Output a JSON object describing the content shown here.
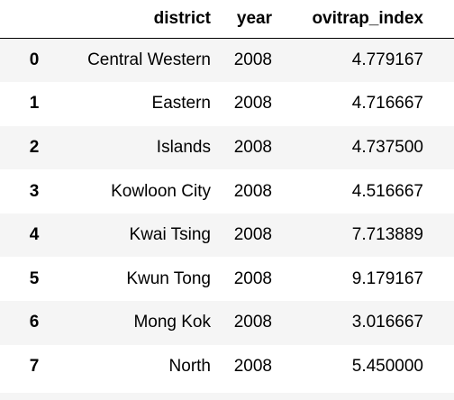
{
  "table": {
    "index_header": "",
    "columns": [
      "district",
      "year",
      "ovitrap_index"
    ],
    "rows": [
      {
        "index": "0",
        "district": "Central Western",
        "year": "2008",
        "ovitrap_index": "4.779167"
      },
      {
        "index": "1",
        "district": "Eastern",
        "year": "2008",
        "ovitrap_index": "4.716667"
      },
      {
        "index": "2",
        "district": "Islands",
        "year": "2008",
        "ovitrap_index": "4.737500"
      },
      {
        "index": "3",
        "district": "Kowloon City",
        "year": "2008",
        "ovitrap_index": "4.516667"
      },
      {
        "index": "4",
        "district": "Kwai Tsing",
        "year": "2008",
        "ovitrap_index": "7.713889"
      },
      {
        "index": "5",
        "district": "Kwun Tong",
        "year": "2008",
        "ovitrap_index": "9.179167"
      },
      {
        "index": "6",
        "district": "Mong Kok",
        "year": "2008",
        "ovitrap_index": "3.016667"
      },
      {
        "index": "7",
        "district": "North",
        "year": "2008",
        "ovitrap_index": "5.450000"
      }
    ]
  }
}
